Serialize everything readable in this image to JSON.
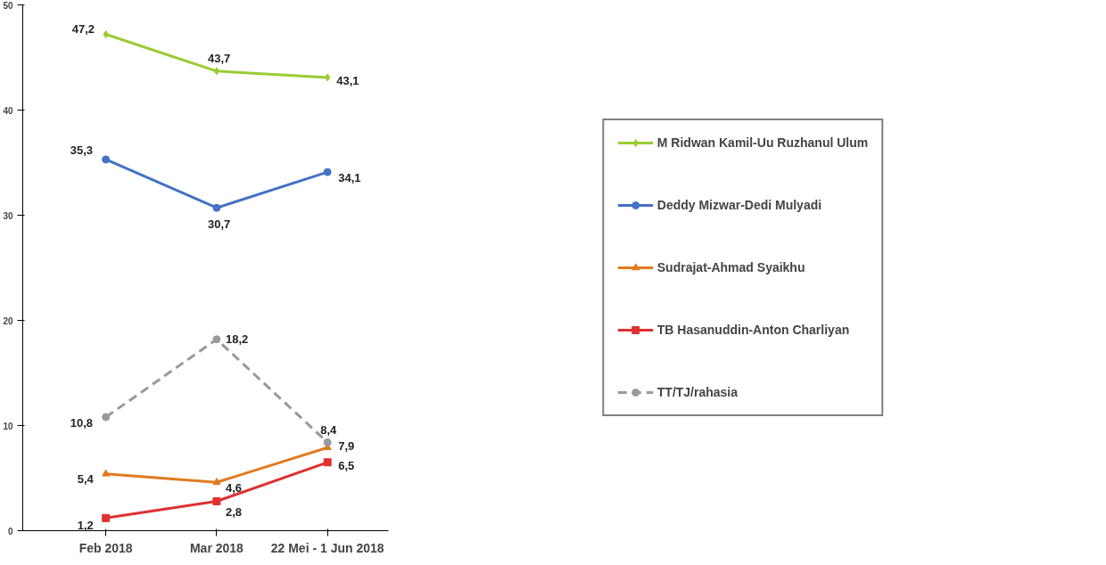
{
  "chart_data": {
    "type": "line",
    "categories": [
      "Feb 2018",
      "Mar 2018",
      "22 Mei - 1 Jun 2018"
    ],
    "ylim": [
      0,
      50
    ],
    "yticks": [
      0,
      10,
      20,
      30,
      40,
      50
    ],
    "grid": false,
    "legend": "right",
    "series": [
      {
        "name": "M Ridwan Kamil-Uu Ruzhanul Ulum",
        "color": "#99cc33",
        "marker": "diamond",
        "line_style": "solid",
        "values": [
          47.2,
          43.7,
          43.1
        ],
        "value_labels": [
          "47,2",
          "43,7",
          "43,1"
        ]
      },
      {
        "name": "Deddy Mizwar-Dedi Mulyadi",
        "color": "#4472c4",
        "marker": "circle",
        "line_style": "solid",
        "values": [
          35.3,
          30.7,
          34.1
        ],
        "value_labels": [
          "35,3",
          "30,7",
          "34,1"
        ]
      },
      {
        "name": "Sudrajat-Ahmad Syaikhu",
        "color": "#e07b20",
        "marker": "triangle",
        "line_style": "solid",
        "values": [
          5.4,
          4.6,
          7.9
        ],
        "value_labels": [
          "5,4",
          "4,6",
          "7,9"
        ]
      },
      {
        "name": "TB Hasanuddin-Anton Charliyan",
        "color": "#e03030",
        "marker": "square",
        "line_style": "solid",
        "values": [
          1.2,
          2.8,
          6.5
        ],
        "value_labels": [
          "1,2",
          "2,8",
          "6,5"
        ]
      },
      {
        "name": "TT/TJ/rahasia",
        "color": "#999999",
        "marker": "circle",
        "line_style": "dashed",
        "values": [
          10.8,
          18.2,
          8.4
        ],
        "value_labels": [
          "10,8",
          "18,2",
          "8,4"
        ]
      }
    ]
  }
}
